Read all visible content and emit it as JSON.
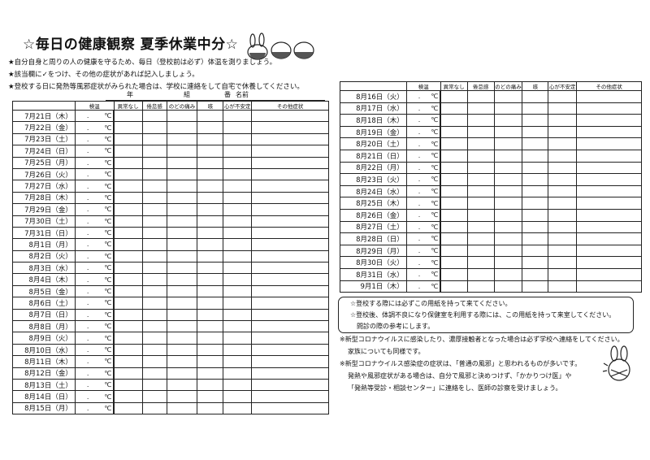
{
  "title": "☆毎日の健康観察 夏季休業中分☆",
  "intro": [
    "★自分自身と周りの人の健康を守るため、毎日（登校前は必ず）体温を測りましょう。",
    "★該当欄に✓をつけ、その他の症状があれば記入しましょう。",
    "★登校する日に発熱等風邪症状がみられた場合は、学校に連絡をして自宅で休養してください。"
  ],
  "class_line": {
    "year": "年",
    "group": "組",
    "number": "番",
    "name": "名前"
  },
  "headers": [
    "",
    "検温",
    "異常なし",
    "倦怠感",
    "のどの痛み",
    "咳",
    "心が不安定",
    "その他症状"
  ],
  "temp_placeholder": ".",
  "temp_unit": "℃",
  "left_dates": [
    "7月21日（木）",
    "7月22日（金）",
    "7月23日（土）",
    "7月24日（日）",
    "7月25日（月）",
    "7月26日（火）",
    "7月27日（水）",
    "7月28日（木）",
    "7月29日（金）",
    "7月30日（土）",
    "7月31日（日）",
    "8月1日（月）",
    "8月2日（火）",
    "8月3日（水）",
    "8月4日（木）",
    "8月5日（金）",
    "8月6日（土）",
    "8月7日（日）",
    "8月8日（月）",
    "8月9日（火）",
    "8月10日（水）",
    "8月11日（木）",
    "8月12日（金）",
    "8月13日（土）",
    "8月14日（日）",
    "8月15日（月）"
  ],
  "right_dates": [
    "8月16日（火）",
    "8月17日（水）",
    "8月18日（木）",
    "8月19日（金）",
    "8月20日（土）",
    "8月21日（日）",
    "8月22日（月）",
    "8月23日（火）",
    "8月24日（水）",
    "8月25日（木）",
    "8月26日（金）",
    "8月27日（土）",
    "8月28日（日）",
    "8月29日（月）",
    "8月30日（火）",
    "8月31日（水）",
    "9月1日（木）"
  ],
  "notes_box": [
    "☆登校する際には必ずこの用紙を持って来てください。",
    "☆登校後、体調不良になり保健室を利用する際には、この用紙を持って来室してください。",
    "問診の際の参考にします。"
  ],
  "footnotes": [
    "※新型コロナウイルスに感染したり、濃厚接触者となった場合は必ず学校へ連絡をしてください。",
    "家族についても同様です。",
    "※新型コロナウイルス感染症の症状は、「普通の風邪」と思われるものが多いです。",
    "発熱や風邪症状がある場合は、自分で風邪と決めつけず、「かかりつけ医」や",
    "「発熱等受診・相談センター」に連絡をし、医師の診察を受けましょう。"
  ]
}
